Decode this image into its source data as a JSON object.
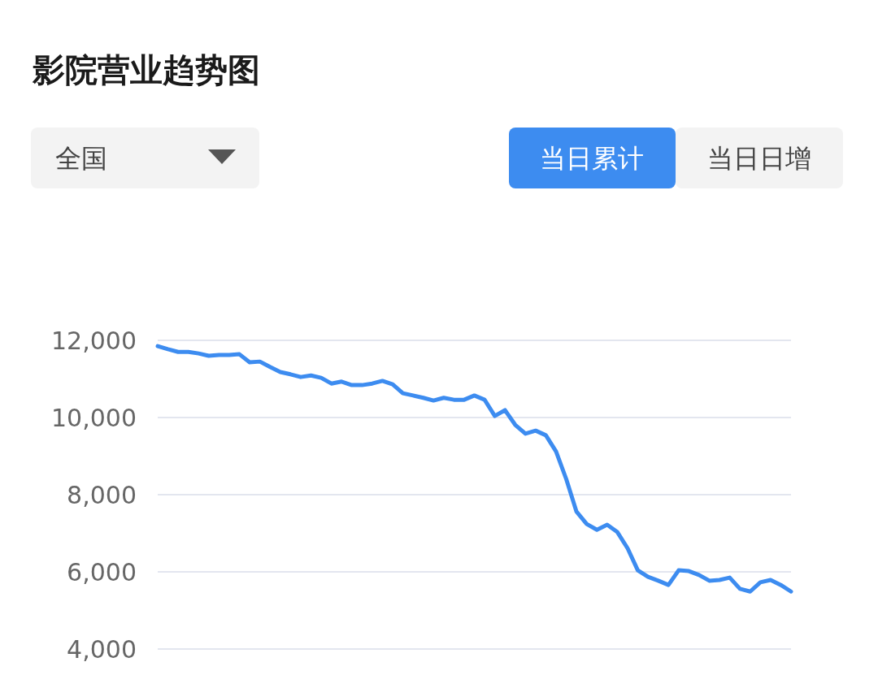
{
  "chart_data": {
    "type": "line",
    "title": "影院营业趋势图",
    "annotations": [
      "全国",
      "当日累计",
      "当日日增"
    ],
    "categories": [
      null,
      null,
      null,
      null,
      null,
      null,
      null,
      null,
      null,
      null,
      null,
      null,
      null,
      null,
      null,
      null,
      null,
      null,
      null,
      null,
      null,
      null,
      null,
      null,
      null,
      null,
      null,
      null,
      null,
      null,
      null,
      null,
      null,
      null,
      null,
      null,
      null,
      null,
      null,
      null,
      null,
      null,
      null,
      null,
      null,
      null,
      null,
      null,
      null,
      null,
      null,
      null,
      null,
      null,
      null,
      null,
      null,
      null,
      null,
      null,
      null,
      null,
      null
    ],
    "series": [
      {
        "color": "#3d8cf0",
        "values": [
          11850,
          11770,
          11700,
          11700,
          11660,
          11600,
          11620,
          11620,
          11640,
          11430,
          11450,
          11310,
          11180,
          11120,
          11050,
          11090,
          11030,
          10880,
          10930,
          10840,
          10840,
          10880,
          10950,
          10860,
          10630,
          10570,
          10510,
          10440,
          10510,
          10460,
          10460,
          10570,
          10460,
          10040,
          10190,
          9810,
          9580,
          9660,
          9540,
          9120,
          8400,
          7560,
          7240,
          7090,
          7220,
          7030,
          6610,
          6040,
          5870,
          5770,
          5660,
          6040,
          6020,
          5920,
          5770,
          5790,
          5850,
          5560,
          5490,
          5730,
          5790,
          5660,
          5490
        ]
      }
    ],
    "ylim": [
      4000,
      12000
    ],
    "yticks": [
      {
        "value": 4000,
        "label": "4,000"
      },
      {
        "value": 6000,
        "label": "6,000"
      },
      {
        "value": 8000,
        "label": "8,000"
      },
      {
        "value": 10000,
        "label": "10,000"
      },
      {
        "value": 12000,
        "label": "12,000"
      }
    ],
    "grid": "y",
    "marker": "none",
    "line_style": "solid"
  }
}
